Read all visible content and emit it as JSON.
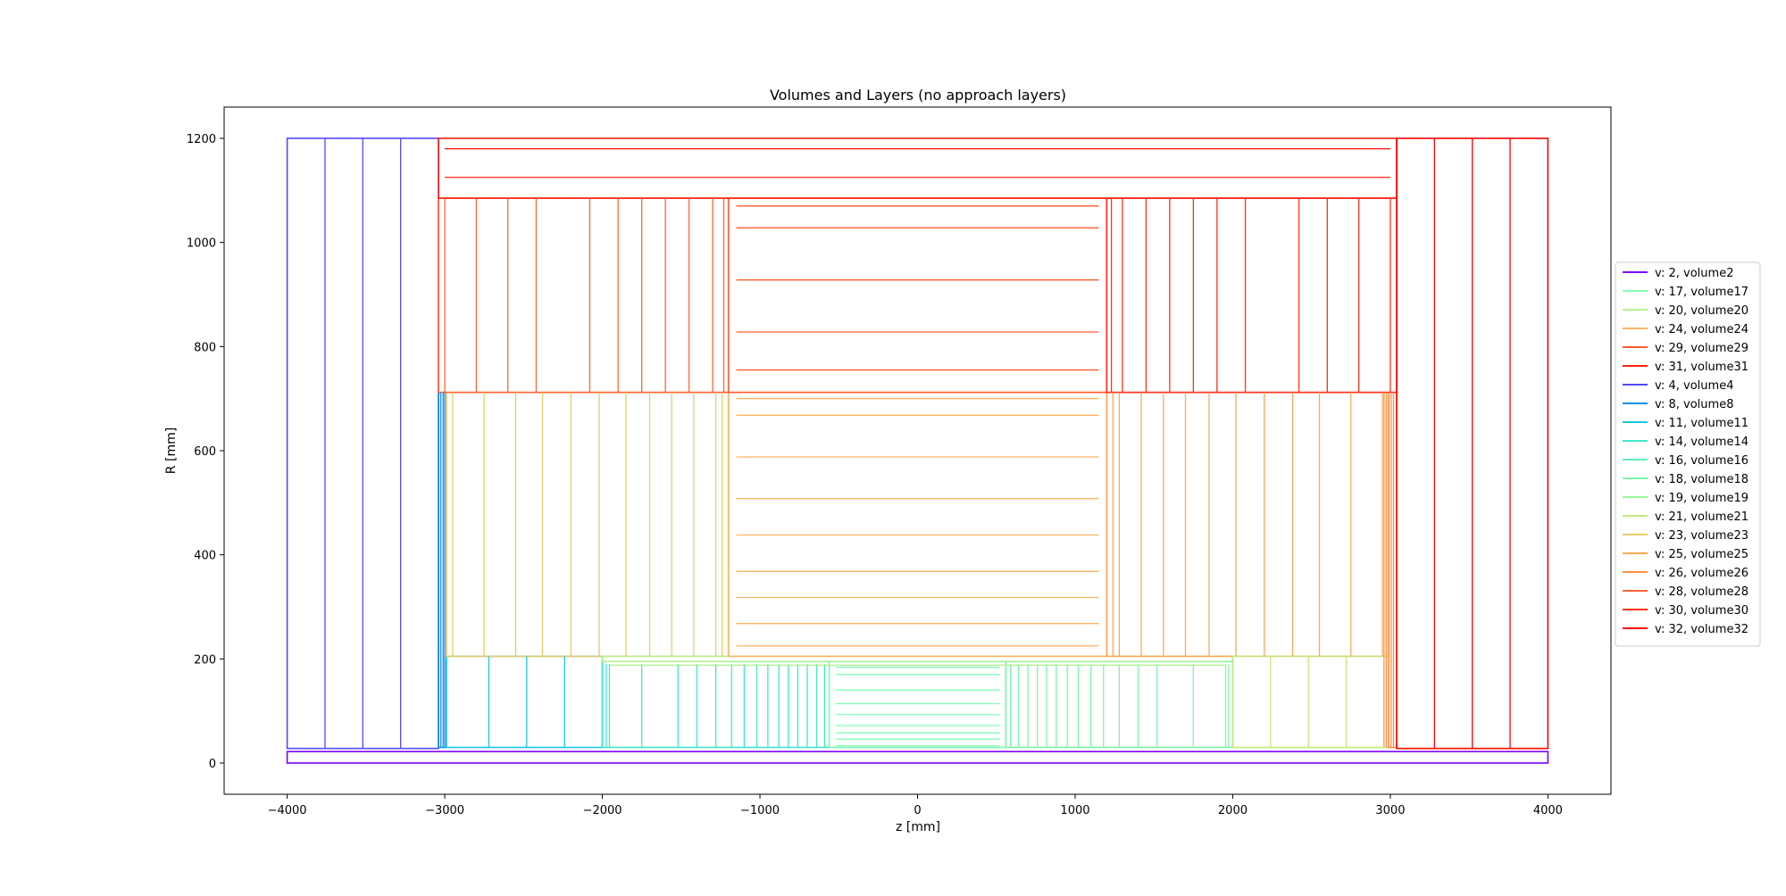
{
  "chart_data": {
    "type": "line",
    "title": "Volumes and Layers (no approach layers)",
    "xlabel": "z [mm]",
    "ylabel": "R [mm]",
    "xlim": [
      -4400,
      4400
    ],
    "ylim": [
      -60,
      1260
    ],
    "xticks": [
      -4000,
      -3000,
      -2000,
      -1000,
      0,
      1000,
      2000,
      3000,
      4000
    ],
    "yticks": [
      0,
      200,
      400,
      600,
      800,
      1000,
      1200
    ],
    "grid": false,
    "legend_position": "right",
    "legend": [
      {
        "label": "v: 2, volume2",
        "color": "#7f00ff"
      },
      {
        "label": "v: 17, volume17",
        "color": "#80ffb4"
      },
      {
        "label": "v: 20, volume20",
        "color": "#b4f290"
      },
      {
        "label": "v: 24, volume24",
        "color": "#ffb360"
      },
      {
        "label": "v: 29, volume29",
        "color": "#ff5a2c"
      },
      {
        "label": "v: 31, volume31",
        "color": "#ff2010"
      },
      {
        "label": "v: 4, volume4",
        "color": "#5548fc"
      },
      {
        "label": "v: 8, volume8",
        "color": "#1a8ff0"
      },
      {
        "label": "v: 11, volume11",
        "color": "#18c8e4"
      },
      {
        "label": "v: 14, volume14",
        "color": "#40e8cc"
      },
      {
        "label": "v: 16, volume16",
        "color": "#5ef0c0"
      },
      {
        "label": "v: 18, volume18",
        "color": "#7af8a8"
      },
      {
        "label": "v: 19, volume19",
        "color": "#96fa96"
      },
      {
        "label": "v: 21, volume21",
        "color": "#c4e880"
      },
      {
        "label": "v: 23, volume23",
        "color": "#e8cc6a"
      },
      {
        "label": "v: 25, volume25",
        "color": "#ffa856"
      },
      {
        "label": "v: 26, volume26",
        "color": "#ff9048"
      },
      {
        "label": "v: 28, volume28",
        "color": "#ff6636"
      },
      {
        "label": "v: 30, volume30",
        "color": "#ff3018"
      },
      {
        "label": "v: 32, volume32",
        "color": "#ff0000"
      }
    ],
    "rects": [
      {
        "volume": 2,
        "color": "#7f00ff",
        "z": [
          -4000,
          4000
        ],
        "r": [
          0,
          22
        ]
      },
      {
        "volume": 4,
        "color": "#5548fc",
        "z": [
          -4000,
          -3040
        ],
        "r": [
          28,
          1200
        ]
      },
      {
        "volume": 8,
        "color": "#1a8ff0",
        "z": [
          -3040,
          -2990
        ],
        "r": [
          30,
          712
        ]
      },
      {
        "volume": 11,
        "color": "#18c8e4",
        "z": [
          -2990,
          -2000
        ],
        "r": [
          30,
          205
        ]
      },
      {
        "volume": 23,
        "color": "#e8cc6a",
        "z": [
          -2990,
          -1200
        ],
        "r": [
          205,
          712
        ]
      },
      {
        "volume": 14,
        "color": "#40e8cc",
        "z": [
          -2000,
          -560
        ],
        "r": [
          30,
          195
        ]
      },
      {
        "volume": 20,
        "color": "#b4f290",
        "z": [
          -2000,
          2000
        ],
        "r": [
          195,
          205
        ]
      },
      {
        "volume": 17,
        "color": "#80ffb4",
        "z": [
          -560,
          560
        ],
        "r": [
          30,
          195
        ]
      },
      {
        "volume": 18,
        "color": "#7af8a8",
        "z": [
          560,
          2000
        ],
        "r": [
          30,
          195
        ]
      },
      {
        "volume": 24,
        "color": "#ffb360",
        "z": [
          -1200,
          1200
        ],
        "r": [
          205,
          712
        ]
      },
      {
        "volume": 25,
        "color": "#ffa856",
        "z": [
          1200,
          2990
        ],
        "r": [
          205,
          712
        ]
      },
      {
        "volume": 21,
        "color": "#c4e880",
        "z": [
          2000,
          2990
        ],
        "r": [
          30,
          205
        ]
      },
      {
        "volume": 26,
        "color": "#ff9048",
        "z": [
          2990,
          3040
        ],
        "r": [
          30,
          712
        ]
      },
      {
        "volume": 28,
        "color": "#ff6636",
        "z": [
          -3040,
          -1200
        ],
        "r": [
          712,
          1085
        ]
      },
      {
        "volume": 29,
        "color": "#ff5a2c",
        "z": [
          -1200,
          1200
        ],
        "r": [
          712,
          1085
        ]
      },
      {
        "volume": 30,
        "color": "#ff3018",
        "z": [
          1200,
          3040
        ],
        "r": [
          712,
          1085
        ]
      },
      {
        "volume": 31,
        "color": "#ff2010",
        "z": [
          -3040,
          3040
        ],
        "r": [
          1085,
          1200
        ]
      },
      {
        "volume": 32,
        "color": "#ff0000",
        "z": [
          3040,
          4000
        ],
        "r": [
          28,
          1200
        ]
      }
    ],
    "barrel_layers": [
      {
        "volume": 17,
        "color": "#80ffb4",
        "z": [
          -520,
          520
        ],
        "r": [
          33,
          46,
          58,
          72,
          93,
          114,
          140,
          170,
          184
        ]
      },
      {
        "volume": 20,
        "color": "#b4f290",
        "z": [
          -1950,
          1950
        ],
        "r": [
          188,
          195
        ]
      },
      {
        "volume": 24,
        "color": "#ffb360",
        "z": [
          -1150,
          1150
        ],
        "r": [
          225,
          268,
          318,
          368,
          438,
          508,
          588,
          668,
          700
        ]
      },
      {
        "volume": 29,
        "color": "#ff5a2c",
        "z": [
          -1150,
          1150
        ],
        "r": [
          755,
          828,
          928,
          1028,
          1070
        ]
      },
      {
        "volume": 31,
        "color": "#ff2010",
        "z": [
          -3000,
          3000
        ],
        "r": [
          1125,
          1180
        ]
      }
    ],
    "endcap_layers": [
      {
        "volume": 4,
        "color": "#5548fc",
        "r": [
          28,
          1200
        ],
        "z": [
          -3760,
          -3520,
          -3280
        ]
      },
      {
        "volume": 32,
        "color": "#ff0000",
        "r": [
          28,
          1200
        ],
        "z": [
          3280,
          3520,
          3760
        ]
      },
      {
        "volume": 8,
        "color": "#1a8ff0",
        "r": [
          30,
          712
        ],
        "z": [
          -3025,
          -3010,
          -3000
        ]
      },
      {
        "volume": 26,
        "color": "#ff9048",
        "r": [
          30,
          712
        ],
        "z": [
          2960,
          2975,
          2990,
          3005,
          3020
        ]
      },
      {
        "volume": 11,
        "color": "#18c8e4",
        "r": [
          30,
          205
        ],
        "z": [
          -2720,
          -2480,
          -2240
        ]
      },
      {
        "volume": 21,
        "color": "#c4e880",
        "r": [
          30,
          205
        ],
        "z": [
          2240,
          2480,
          2720
        ]
      },
      {
        "volume": 23,
        "color": "#e8cc6a",
        "r": [
          205,
          712
        ],
        "z": [
          -2950,
          -2750,
          -2550,
          -2380,
          -2200,
          -2020,
          -1850,
          -1700,
          -1560,
          -1420,
          -1280,
          -1240
        ]
      },
      {
        "volume": 25,
        "color": "#ffa856",
        "r": [
          205,
          712
        ],
        "z": [
          1240,
          1280,
          1420,
          1560,
          1700,
          1850,
          2020,
          2200,
          2380,
          2550,
          2750,
          2950
        ]
      },
      {
        "volume": 14,
        "color": "#40e8cc",
        "r": [
          30,
          190
        ],
        "z": [
          -1975,
          -1955,
          -1750,
          -1520,
          -1400,
          -1280,
          -1180,
          -1100,
          -1020,
          -950,
          -880,
          -820,
          -760,
          -700,
          -640,
          -590
        ]
      },
      {
        "volume": 18,
        "color": "#7af8a8",
        "r": [
          30,
          190
        ],
        "z": [
          590,
          640,
          700,
          760,
          820,
          880,
          950,
          1020,
          1100,
          1180,
          1280,
          1400,
          1520,
          1750,
          1955,
          1975
        ]
      },
      {
        "volume": 28,
        "color": "#ff6636",
        "r": [
          712,
          1085
        ],
        "z": [
          -3000,
          -2800,
          -2600,
          -2420,
          -2080,
          -1900,
          -1750,
          -1600,
          -1450,
          -1300,
          -1230
        ]
      },
      {
        "volume": 30,
        "color": "#ff3018",
        "r": [
          712,
          1085
        ],
        "z": [
          1230,
          1300,
          1450,
          1600,
          1750,
          1900,
          2080,
          2420,
          2600,
          2800,
          3000
        ]
      }
    ]
  }
}
